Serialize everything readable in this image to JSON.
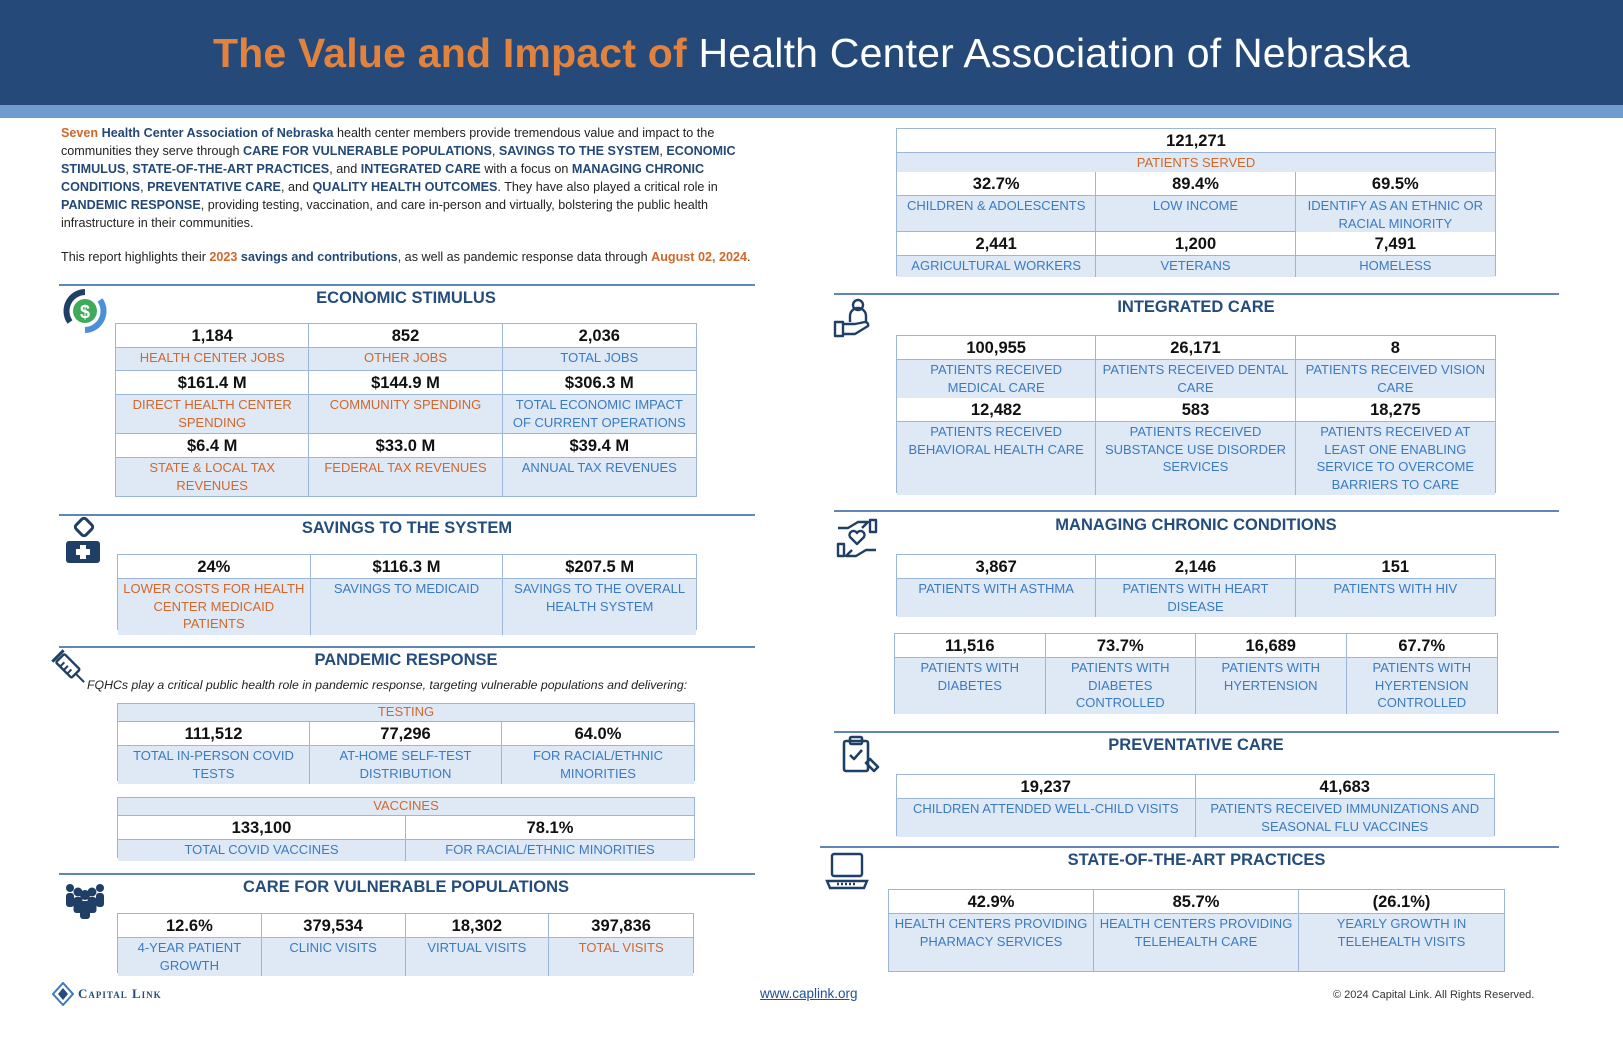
{
  "header": {
    "title_accent": "The Value and Impact of",
    "title_rest": "Health Center Association of Nebraska"
  },
  "intro": {
    "p1": [
      {
        "t": "Seven ",
        "s": "o"
      },
      {
        "t": "Health Center Association of Nebraska",
        "s": "b"
      },
      {
        "t": " health center members provide tremendous value and impact to the communities they serve through ",
        "s": ""
      },
      {
        "t": "CARE FOR VULNERABLE POPULATIONS",
        "s": "b"
      },
      {
        "t": ", ",
        "s": ""
      },
      {
        "t": "SAVINGS TO THE SYSTEM",
        "s": "b"
      },
      {
        "t": ", ",
        "s": ""
      },
      {
        "t": "ECONOMIC STIMULUS",
        "s": "b"
      },
      {
        "t": ", ",
        "s": ""
      },
      {
        "t": "STATE-OF-THE-ART PRACTICES",
        "s": "b"
      },
      {
        "t": ", and ",
        "s": ""
      },
      {
        "t": "INTEGRATED CARE",
        "s": "b"
      },
      {
        "t": " with a focus on ",
        "s": ""
      },
      {
        "t": "MANAGING CHRONIC CONDITIONS",
        "s": "b"
      },
      {
        "t": ", ",
        "s": ""
      },
      {
        "t": "PREVENTATIVE CARE",
        "s": "b"
      },
      {
        "t": ", and ",
        "s": ""
      },
      {
        "t": "QUALITY HEALTH OUTCOMES",
        "s": "b"
      },
      {
        "t": ". They have also played a critical role in ",
        "s": ""
      },
      {
        "t": "PANDEMIC RESPONSE",
        "s": "b"
      },
      {
        "t": ", providing testing, vaccination, and care in-person and virtually, bolstering the public health infrastructure in their communities.",
        "s": ""
      }
    ],
    "p2": [
      {
        "t": "This report highlights their ",
        "s": ""
      },
      {
        "t": "2023",
        "s": "o"
      },
      {
        "t": " savings and contributions",
        "s": "b"
      },
      {
        "t": ", as well as pandemic response data through ",
        "s": ""
      },
      {
        "t": "August 02, 2024",
        "s": "o"
      },
      {
        "t": ".",
        "s": ""
      }
    ]
  },
  "economic": {
    "title": "ECONOMIC STIMULUS",
    "cells": [
      {
        "value": "1,184",
        "label": "HEALTH CENTER JOBS",
        "color": "orange"
      },
      {
        "value": "852",
        "label": "OTHER JOBS",
        "color": "orange"
      },
      {
        "value": "2,036",
        "label": "TOTAL JOBS",
        "color": "blue"
      },
      {
        "value": "$161.4 M",
        "label": "DIRECT HEALTH CENTER SPENDING",
        "color": "orange"
      },
      {
        "value": "$144.9 M",
        "label": "COMMUNITY SPENDING",
        "color": "orange"
      },
      {
        "value": "$306.3 M",
        "label": "TOTAL ECONOMIC IMPACT OF CURRENT OPERATIONS",
        "color": "blue"
      },
      {
        "value": "$6.4 M",
        "label": "STATE & LOCAL TAX REVENUES",
        "color": "orange"
      },
      {
        "value": "$33.0 M",
        "label": "FEDERAL TAX REVENUES",
        "color": "orange"
      },
      {
        "value": "$39.4 M",
        "label": "ANNUAL TAX REVENUES",
        "color": "blue"
      }
    ]
  },
  "savings": {
    "title": "SAVINGS TO THE SYSTEM",
    "cells": [
      {
        "value": "24%",
        "label": "LOWER COSTS FOR HEALTH CENTER MEDICAID PATIENTS",
        "color": "orange"
      },
      {
        "value": "$116.3 M",
        "label": "SAVINGS TO MEDICAID",
        "color": "blue"
      },
      {
        "value": "$207.5 M",
        "label": "SAVINGS TO THE OVERALL HEALTH SYSTEM",
        "color": "blue"
      }
    ]
  },
  "pandemic": {
    "title": "PANDEMIC RESPONSE",
    "subtitle": "FQHCs play a critical public health role in pandemic response, targeting vulnerable populations and delivering:",
    "testing_label": "TESTING",
    "testing": [
      {
        "value": "111,512",
        "label": "TOTAL IN-PERSON COVID TESTS",
        "color": "blue"
      },
      {
        "value": "77,296",
        "label": "AT-HOME SELF-TEST DISTRIBUTION",
        "color": "blue"
      },
      {
        "value": "64.0%",
        "label": "FOR RACIAL/ETHNIC MINORITIES",
        "color": "blue"
      }
    ],
    "vaccines_label": "VACCINES",
    "vaccines": [
      {
        "value": "133,100",
        "label": "TOTAL COVID VACCINES",
        "color": "blue"
      },
      {
        "value": "78.1%",
        "label": "FOR RACIAL/ETHNIC MINORITIES",
        "color": "blue"
      }
    ]
  },
  "vulnerable": {
    "title": "CARE FOR VULNERABLE POPULATIONS",
    "cells": [
      {
        "value": "12.6%",
        "label": "4-YEAR PATIENT GROWTH",
        "color": "blue"
      },
      {
        "value": "379,534",
        "label": "CLINIC VISITS",
        "color": "blue"
      },
      {
        "value": "18,302",
        "label": "VIRTUAL VISITS",
        "color": "blue"
      },
      {
        "value": "397,836",
        "label": "TOTAL VISITS",
        "color": "orange"
      }
    ]
  },
  "patients": {
    "total": "121,271",
    "total_label": "PATIENTS SERVED",
    "cells": [
      {
        "value": "32.7%",
        "label": "CHILDREN & ADOLESCENTS",
        "color": "blue"
      },
      {
        "value": "89.4%",
        "label": "LOW INCOME",
        "color": "blue"
      },
      {
        "value": "69.5%",
        "label": "IDENTIFY AS AN ETHNIC OR RACIAL MINORITY",
        "color": "blue"
      },
      {
        "value": "2,441",
        "label": "AGRICULTURAL WORKERS",
        "color": "blue"
      },
      {
        "value": "1,200",
        "label": "VETERANS",
        "color": "blue"
      },
      {
        "value": "7,491",
        "label": "HOMELESS",
        "color": "blue"
      }
    ]
  },
  "integrated": {
    "title": "INTEGRATED CARE",
    "cells": [
      {
        "value": "100,955",
        "label": "PATIENTS RECEIVED MEDICAL CARE",
        "color": "blue"
      },
      {
        "value": "26,171",
        "label": "PATIENTS RECEIVED DENTAL CARE",
        "color": "blue"
      },
      {
        "value": "8",
        "label": "PATIENTS RECEIVED VISION CARE",
        "color": "blue"
      },
      {
        "value": "12,482",
        "label": "PATIENTS RECEIVED BEHAVIORAL HEALTH CARE",
        "color": "blue"
      },
      {
        "value": "583",
        "label": "PATIENTS RECEIVED SUBSTANCE USE DISORDER SERVICES",
        "color": "blue"
      },
      {
        "value": "18,275",
        "label": "PATIENTS RECEIVED AT LEAST ONE ENABLING SERVICE TO OVERCOME BARRIERS TO CARE",
        "color": "blue"
      }
    ]
  },
  "chronic": {
    "title": "MANAGING CHRONIC CONDITIONS",
    "row1": [
      {
        "value": "3,867",
        "label": "PATIENTS WITH ASTHMA",
        "color": "blue"
      },
      {
        "value": "2,146",
        "label": "PATIENTS WITH HEART DISEASE",
        "color": "blue"
      },
      {
        "value": "151",
        "label": "PATIENTS WITH HIV",
        "color": "blue"
      }
    ],
    "row2": [
      {
        "value": "11,516",
        "label": "PATIENTS WITH DIABETES",
        "color": "blue"
      },
      {
        "value": "73.7%",
        "label": "PATIENTS WITH DIABETES CONTROLLED",
        "color": "blue"
      },
      {
        "value": "16,689",
        "label": "PATIENTS WITH HYERTENSION",
        "color": "blue"
      },
      {
        "value": "67.7%",
        "label": "PATIENTS WITH HYERTENSION CONTROLLED",
        "color": "blue"
      }
    ]
  },
  "preventative": {
    "title": "PREVENTATIVE CARE",
    "cells": [
      {
        "value": "19,237",
        "label": "CHILDREN ATTENDED WELL-CHILD VISITS",
        "color": "blue"
      },
      {
        "value": "41,683",
        "label": "PATIENTS RECEIVED IMMUNIZATIONS AND SEASONAL FLU VACCINES",
        "color": "blue"
      }
    ]
  },
  "stateart": {
    "title": "STATE-OF-THE-ART PRACTICES",
    "cells": [
      {
        "value": "42.9%",
        "label": "HEALTH CENTERS PROVIDING PHARMACY SERVICES",
        "color": "blue"
      },
      {
        "value": "85.7%",
        "label": "HEALTH CENTERS PROVIDING TELEHEALTH CARE",
        "color": "blue"
      },
      {
        "value": "(26.1%)",
        "label": "YEARLY GROWTH IN TELEHEALTH VISITS",
        "color": "blue"
      }
    ]
  },
  "footer": {
    "logo": "Capital Link",
    "link": "www.caplink.org",
    "copyright": "© 2024 Capital Link. All Rights Reserved."
  },
  "colors": {
    "navy": "#254a79",
    "orange": "#e2823f",
    "label_orange": "#d0672b",
    "label_blue": "#3a7bc0",
    "cell_fill": "#dfe9f6"
  }
}
